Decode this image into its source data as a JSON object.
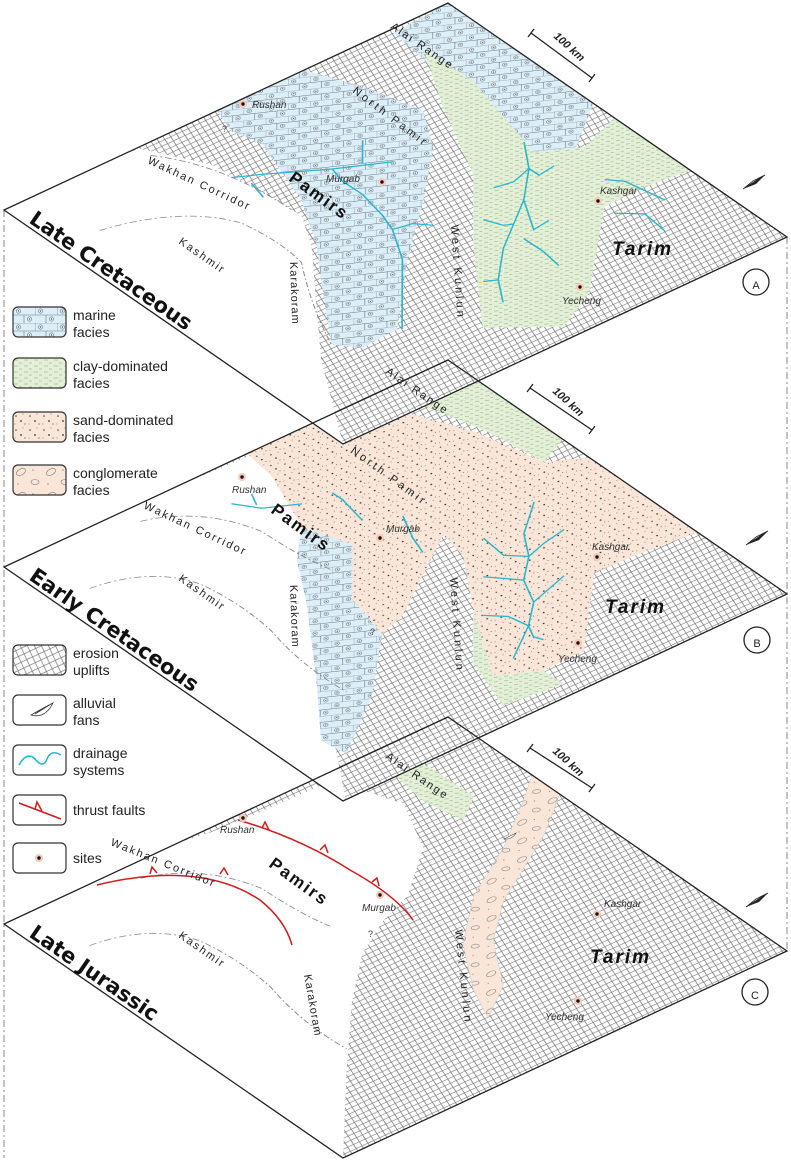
{
  "panels": [
    {
      "id": "A",
      "letter": "A",
      "period": "Late Cretaceous",
      "scale": "100 km",
      "places": {
        "alai": "Alai Range",
        "north_pamir": "North Pamir",
        "pamirs": "Pamirs",
        "wakhan": "Wakhan Corridor",
        "kashmir": "Kashmir",
        "karakoram": "Karakoram",
        "west_kunlun": "West Kunlun",
        "tarim": "Tarim"
      },
      "sites": {
        "rushan": "Rushan",
        "murgab": "Murgab",
        "kashgar": "Kashgar",
        "yecheng": "Yecheng"
      }
    },
    {
      "id": "B",
      "letter": "B",
      "period": "Early Cretaceous",
      "scale": "100 km",
      "places": {
        "alai": "Alai Range",
        "north_pamir": "North Pamir",
        "pamirs": "Pamirs",
        "wakhan": "Wakhan Corridor",
        "kashmir": "Kashmir",
        "karakoram": "Karakoram",
        "west_kunlun": "West Kunlun",
        "tarim": "Tarim"
      },
      "sites": {
        "rushan": "Rushan",
        "murgab": "Murgab",
        "kashgar": "Kashgar",
        "yecheng": "Yecheng"
      }
    },
    {
      "id": "C",
      "letter": "C",
      "period": "Late Jurassic",
      "scale": "100 km",
      "places": {
        "alai": "Alai Range",
        "pamirs": "Pamirs",
        "wakhan": "Wakhan Corridor",
        "kashmir": "Kashmir",
        "karakoram": "Karakoram",
        "west_kunlun": "West Kunlun",
        "tarim": "Tarim"
      },
      "sites": {
        "rushan": "Rushan",
        "murgab": "Murgab",
        "kashgar": "Kashgar",
        "yecheng": "Yecheng"
      }
    }
  ],
  "uncertain_mark": "?",
  "legend": [
    {
      "line1": "marine",
      "line2": "facies",
      "pattern": "marine"
    },
    {
      "line1": "clay-dominated",
      "line2": "facies",
      "pattern": "clay"
    },
    {
      "line1": "sand-dominated",
      "line2": "facies",
      "pattern": "sand"
    },
    {
      "line1": "conglomerate",
      "line2": "facies",
      "pattern": "conglomerate"
    },
    {
      "line1": "erosion",
      "line2": "uplifts",
      "pattern": "erosion"
    },
    {
      "line1": "alluvial",
      "line2": "fans",
      "pattern": "alluvial-fan"
    },
    {
      "line1": "drainage",
      "line2": "systems",
      "pattern": "drainage"
    },
    {
      "line1": "thrust faults",
      "line2": "",
      "pattern": "thrust"
    },
    {
      "line1": "sites",
      "line2": "",
      "pattern": "site"
    }
  ],
  "colors": {
    "marine": "#dceef8",
    "clay": "#e4efd8",
    "sand": "#f9e6d8",
    "drainage": "#2bb6cc",
    "thrust": "#d01c1c",
    "site": "#c0392b"
  },
  "icons": {
    "north_arrow": "north-arrow-icon"
  }
}
